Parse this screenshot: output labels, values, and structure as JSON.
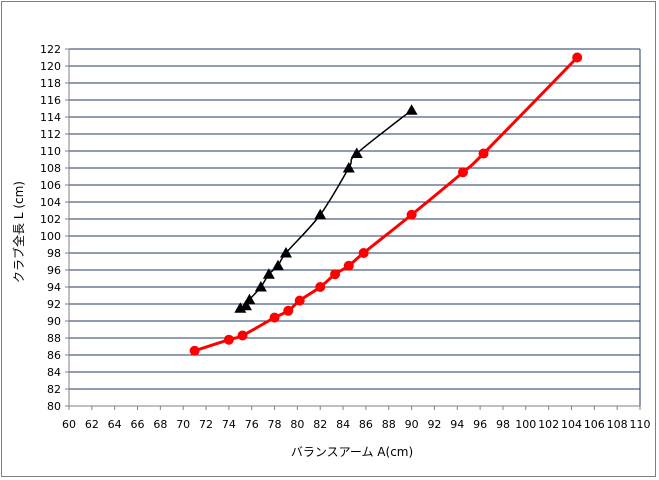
{
  "chart_data": {
    "type": "scatter",
    "title": "",
    "xlabel": "バランスアーム A(cm)",
    "ylabel": "クラブ全長 L (cm)",
    "xlim": [
      60,
      110
    ],
    "ylim": [
      80,
      122
    ],
    "xticks": [
      60,
      62,
      64,
      66,
      68,
      70,
      72,
      74,
      76,
      78,
      80,
      82,
      84,
      86,
      88,
      90,
      92,
      94,
      96,
      98,
      100,
      102,
      104,
      106,
      108,
      110
    ],
    "yticks": [
      80,
      82,
      84,
      86,
      88,
      90,
      92,
      94,
      96,
      98,
      100,
      102,
      104,
      106,
      108,
      110,
      112,
      114,
      116,
      118,
      120,
      122
    ],
    "grid": "horizontal",
    "legend": "none",
    "series": [
      {
        "marker": "triangle",
        "color": "#000000",
        "line_width": 1.5,
        "x": [
          75.0,
          75.5,
          75.8,
          76.8,
          77.5,
          78.3,
          79.0,
          82.0,
          84.5,
          85.2,
          90.0
        ],
        "y": [
          91.5,
          91.8,
          92.5,
          94.0,
          95.5,
          96.5,
          98.0,
          102.5,
          108.0,
          109.7,
          114.8
        ]
      },
      {
        "marker": "circle",
        "color": "#ff0000",
        "line_width": 3,
        "x": [
          71.0,
          74.0,
          75.2,
          78.0,
          79.2,
          80.2,
          82.0,
          83.3,
          84.5,
          85.8,
          90.0,
          94.5,
          96.3,
          104.5
        ],
        "y": [
          86.5,
          87.8,
          88.3,
          90.4,
          91.2,
          92.4,
          94.0,
          95.5,
          96.5,
          98.0,
          102.5,
          107.5,
          109.7,
          121.0
        ]
      }
    ]
  }
}
